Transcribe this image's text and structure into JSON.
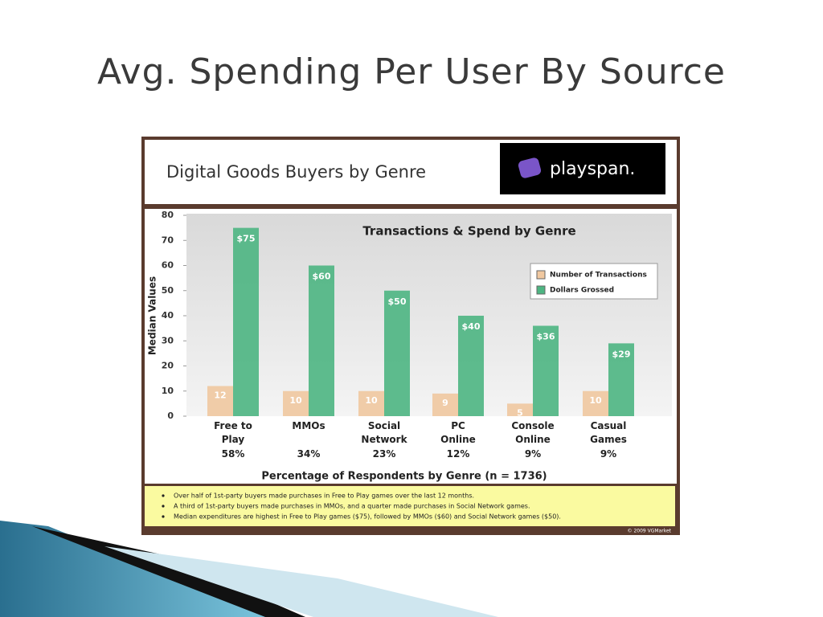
{
  "slide_title": "Avg. Spending Per User By Source",
  "chart_data": {
    "type": "bar",
    "header": "Digital Goods Buyers by Genre",
    "logo": "playspan.",
    "title": "Transactions & Spend by Genre",
    "y_label": "Median Values",
    "x_label": "Percentage of Respondents by Genre (n = 1736)",
    "categories": [
      "Free to Play",
      "MMOs",
      "Social Network",
      "PC Online",
      "Console Online",
      "Casual Games"
    ],
    "category_shares": [
      "58%",
      "34%",
      "23%",
      "12%",
      "9%",
      "9%"
    ],
    "series": [
      {
        "name": "Number of Transactions",
        "color": "#f0c8a0",
        "values": [
          12,
          10,
          10,
          9,
          5,
          10
        ]
      },
      {
        "name": "Dollars Grossed",
        "color": "#4db582",
        "values": [
          75,
          60,
          50,
          40,
          36,
          29
        ],
        "value_labels": [
          "$75",
          "$60",
          "$50",
          "$40",
          "$36",
          "$29"
        ]
      }
    ],
    "ylim": [
      0,
      80
    ],
    "yticks": [
      0,
      10,
      20,
      30,
      40,
      50,
      60,
      70,
      80
    ],
    "legend": "upper right",
    "notes": [
      "Over half of 1st-party buyers made purchases in Free to Play games over the last 12 months.",
      "A third of 1st-party buyers made purchases in MMOs, and a quarter made purchases in Social Network games.",
      "Median expenditures are highest in Free to Play games ($75), followed by MMOs ($60) and Social Network games ($50)."
    ],
    "copyright": "© 2009 VGMarket"
  }
}
